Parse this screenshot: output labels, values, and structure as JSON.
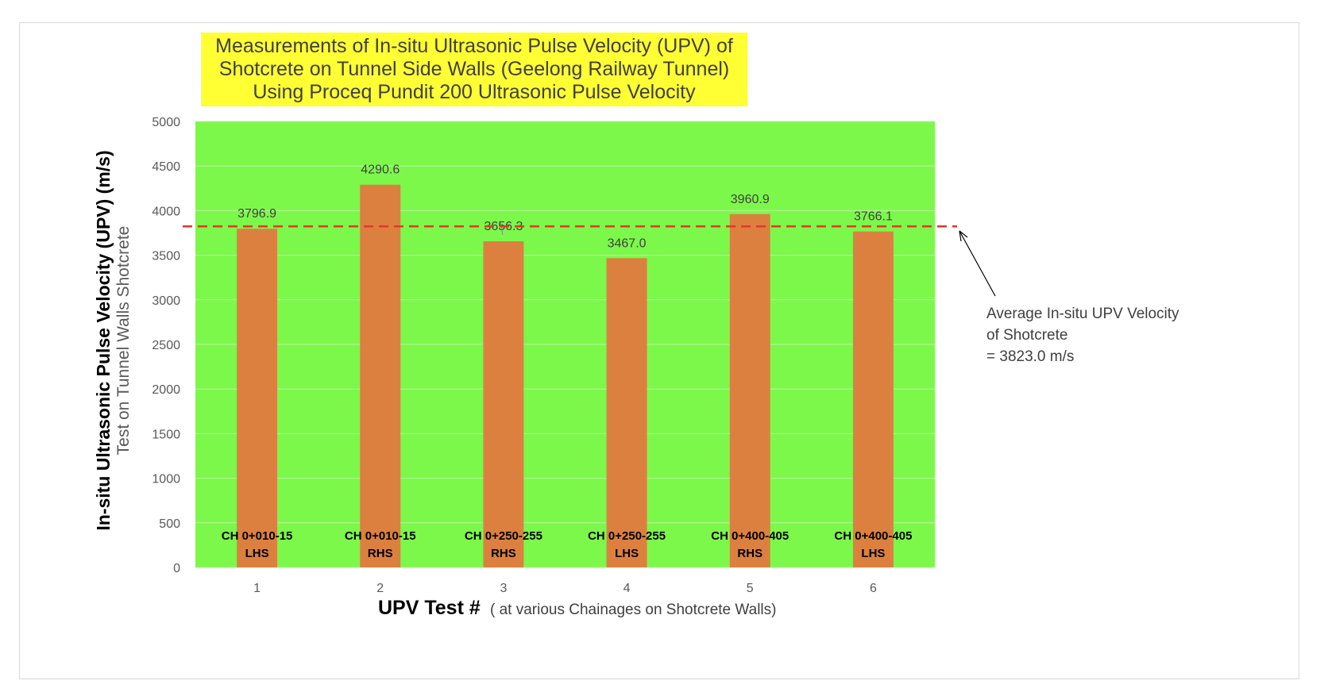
{
  "chart_data": {
    "type": "bar",
    "title_lines": [
      "Measurements of In-situ Ultrasonic Pulse Velocity (UPV)  of",
      "Shotcrete on Tunnel Side Walls (Geelong Railway Tunnel)",
      "Using Proceq Pundit 200 Ultrasonic Pulse Velocity"
    ],
    "ylabel": "In-situ Ultrasonic Pulse Velocity (UPV) (m/s)",
    "ylabel_sub": "Test on Tunnel Walls Shotcrete",
    "xlabel": "UPV Test #",
    "xlabel_sub": "( at various Chainages on Shotcrete Walls)",
    "categories": [
      "1",
      "2",
      "3",
      "4",
      "5",
      "6"
    ],
    "values": [
      3796.9,
      4290.6,
      3656.3,
      3467.0,
      3960.9,
      3766.1
    ],
    "data_labels": [
      "3796.9",
      "4290.6",
      "3656.3",
      "3467.0",
      "3960.9",
      "3766.1"
    ],
    "bar_labels": [
      [
        "CH 0+010-15",
        "LHS"
      ],
      [
        "CH 0+010-15",
        "RHS"
      ],
      [
        "CH 0+250-255",
        "RHS"
      ],
      [
        "CH 0+250-255",
        "LHS"
      ],
      [
        "CH 0+400-405",
        "RHS"
      ],
      [
        "CH 0+400-405",
        "LHS"
      ]
    ],
    "ylim": [
      0,
      5000
    ],
    "yticks": [
      0,
      500,
      1000,
      1500,
      2000,
      2500,
      3000,
      3500,
      4000,
      4500,
      5000
    ],
    "grid": true,
    "average_line": {
      "value": 3823.0,
      "label_lines": [
        "Average In-situ UPV Velocity",
        "of Shotcrete",
        "= 3823.0 m/s"
      ]
    },
    "colors": {
      "plot_background": "#7cf84b",
      "bar": "#dc8040",
      "average_line": "#e8352a",
      "title_background": "#ffff33",
      "gridline": "#b8f59a"
    }
  }
}
